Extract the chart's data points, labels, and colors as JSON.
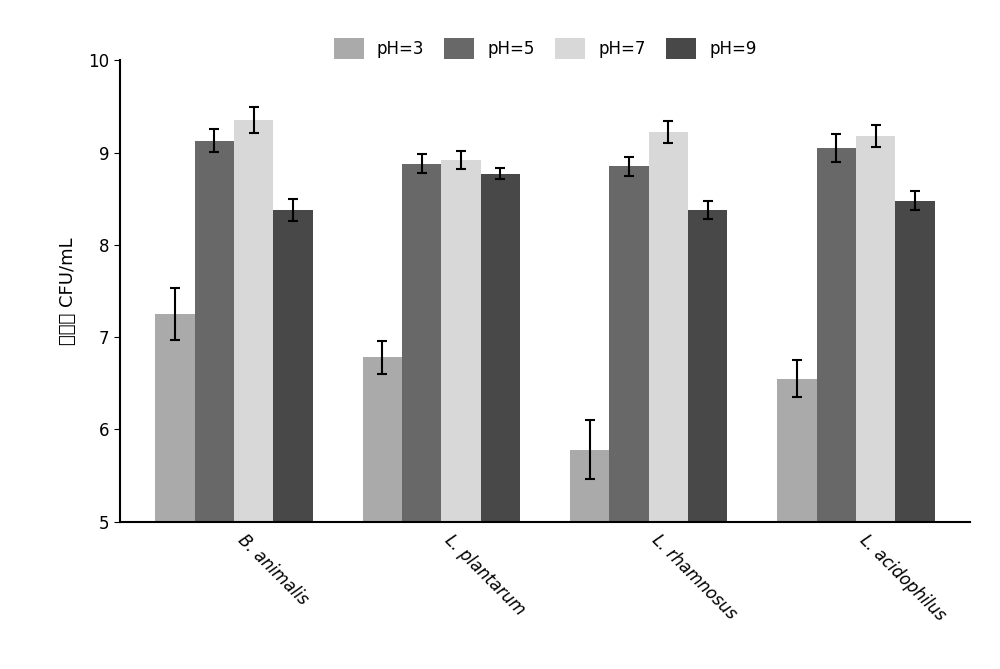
{
  "categories": [
    "B. animalis",
    "L. plantarum",
    "L. rhamnosus",
    "L. acidophilus"
  ],
  "ph_labels": [
    "pH=3",
    "pH=5",
    "pH=7",
    "pH=9"
  ],
  "bar_colors": [
    "#aaaaaa",
    "#686868",
    "#d8d8d8",
    "#484848"
  ],
  "values": [
    [
      7.25,
      9.13,
      9.35,
      8.38
    ],
    [
      6.78,
      8.88,
      8.92,
      8.77
    ],
    [
      5.78,
      8.85,
      9.22,
      8.38
    ],
    [
      6.55,
      9.05,
      9.18,
      8.48
    ]
  ],
  "errors": [
    [
      0.28,
      0.12,
      0.14,
      0.12
    ],
    [
      0.18,
      0.1,
      0.1,
      0.06
    ],
    [
      0.32,
      0.1,
      0.12,
      0.1
    ],
    [
      0.2,
      0.15,
      0.12,
      0.1
    ]
  ],
  "ylim": [
    5,
    10
  ],
  "yticks": [
    5,
    6,
    7,
    8,
    9,
    10
  ],
  "ylabel": "活菌数 CFU/mL",
  "bar_width": 0.19,
  "background_color": "#ffffff",
  "axis_fontsize": 13,
  "tick_fontsize": 12,
  "legend_fontsize": 12
}
